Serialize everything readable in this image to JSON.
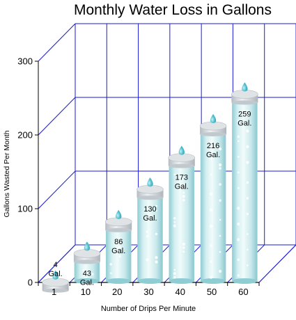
{
  "chart_data": {
    "type": "bar",
    "title": "Monthly Water Loss in Gallons",
    "xlabel": "Number of Drips Per Minute",
    "ylabel": "Gallons Wasted Per Month",
    "categories": [
      "1",
      "10",
      "20",
      "30",
      "40",
      "50",
      "60"
    ],
    "values": [
      4,
      43,
      86,
      130,
      173,
      216,
      259
    ],
    "data_labels": [
      [
        "4",
        "Gal."
      ],
      [
        "43",
        "Gal."
      ],
      [
        "86",
        "Gal."
      ],
      [
        "130",
        "Gal."
      ],
      [
        "173",
        "Gal."
      ],
      [
        "216",
        "Gal."
      ],
      [
        "259",
        "Gal."
      ]
    ],
    "yticks": [
      0,
      100,
      200,
      300
    ],
    "ylim": [
      0,
      300
    ],
    "grid": true,
    "colors": {
      "grid": "#1a1ad8",
      "water_light": "#eaf8f8",
      "water_mid": "#bfe6ea",
      "water_dark": "#8fcdd4",
      "drop": "#3fb6c6",
      "cap": "#cfd4d8"
    }
  }
}
